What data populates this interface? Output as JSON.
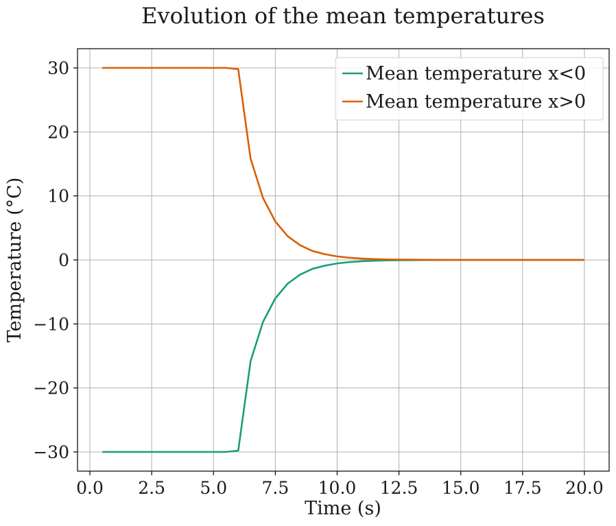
{
  "chart_data": {
    "type": "line",
    "title": "Evolution of the mean temperatures",
    "xlabel": "Time (s)",
    "ylabel": "Temperature (°C)",
    "xlim": [
      -0.5,
      21.0
    ],
    "ylim": [
      -33,
      33
    ],
    "xticks": [
      0.0,
      2.5,
      5.0,
      7.5,
      10.0,
      12.5,
      15.0,
      17.5,
      20.0
    ],
    "xtick_labels": [
      "0.0",
      "2.5",
      "5.0",
      "7.5",
      "10.0",
      "12.5",
      "15.0",
      "17.5",
      "20.0"
    ],
    "yticks": [
      -30,
      -20,
      -10,
      0,
      10,
      20,
      30
    ],
    "ytick_labels": [
      "−30",
      "−20",
      "−10",
      "0",
      "10",
      "20",
      "30"
    ],
    "grid": true,
    "legend_position": "upper-right",
    "x": [
      0.5,
      1.0,
      1.5,
      2.0,
      2.5,
      3.0,
      3.5,
      4.0,
      4.5,
      5.0,
      5.5,
      6.0,
      6.5,
      7.0,
      7.5,
      8.0,
      8.5,
      9.0,
      9.5,
      10.0,
      10.5,
      11.0,
      11.5,
      12.0,
      12.5,
      13.0,
      13.5,
      14.0,
      14.5,
      15.0,
      15.5,
      16.0,
      16.5,
      17.0,
      17.5,
      18.0,
      18.5,
      19.0,
      19.5,
      20.0
    ],
    "series": [
      {
        "name": "Mean temperature x<0",
        "color": "#1b9e77",
        "values": [
          -30,
          -30,
          -30,
          -30,
          -30,
          -30,
          -30,
          -30,
          -30,
          -30,
          -30,
          -29.8,
          -15.8,
          -9.7,
          -6.0,
          -3.7,
          -2.3,
          -1.4,
          -0.9,
          -0.55,
          -0.34,
          -0.21,
          -0.13,
          -0.08,
          -0.05,
          -0.03,
          -0.02,
          -0.01,
          0,
          0,
          0,
          0,
          0,
          0,
          0,
          0,
          0,
          0,
          0,
          0
        ]
      },
      {
        "name": "Mean temperature x>0",
        "color": "#d95f02",
        "values": [
          30,
          30,
          30,
          30,
          30,
          30,
          30,
          30,
          30,
          30,
          30,
          29.8,
          15.8,
          9.7,
          6.0,
          3.7,
          2.3,
          1.4,
          0.9,
          0.55,
          0.34,
          0.21,
          0.13,
          0.08,
          0.05,
          0.03,
          0.02,
          0.01,
          0,
          0,
          0,
          0,
          0,
          0,
          0,
          0,
          0,
          0,
          0,
          0
        ]
      }
    ]
  }
}
